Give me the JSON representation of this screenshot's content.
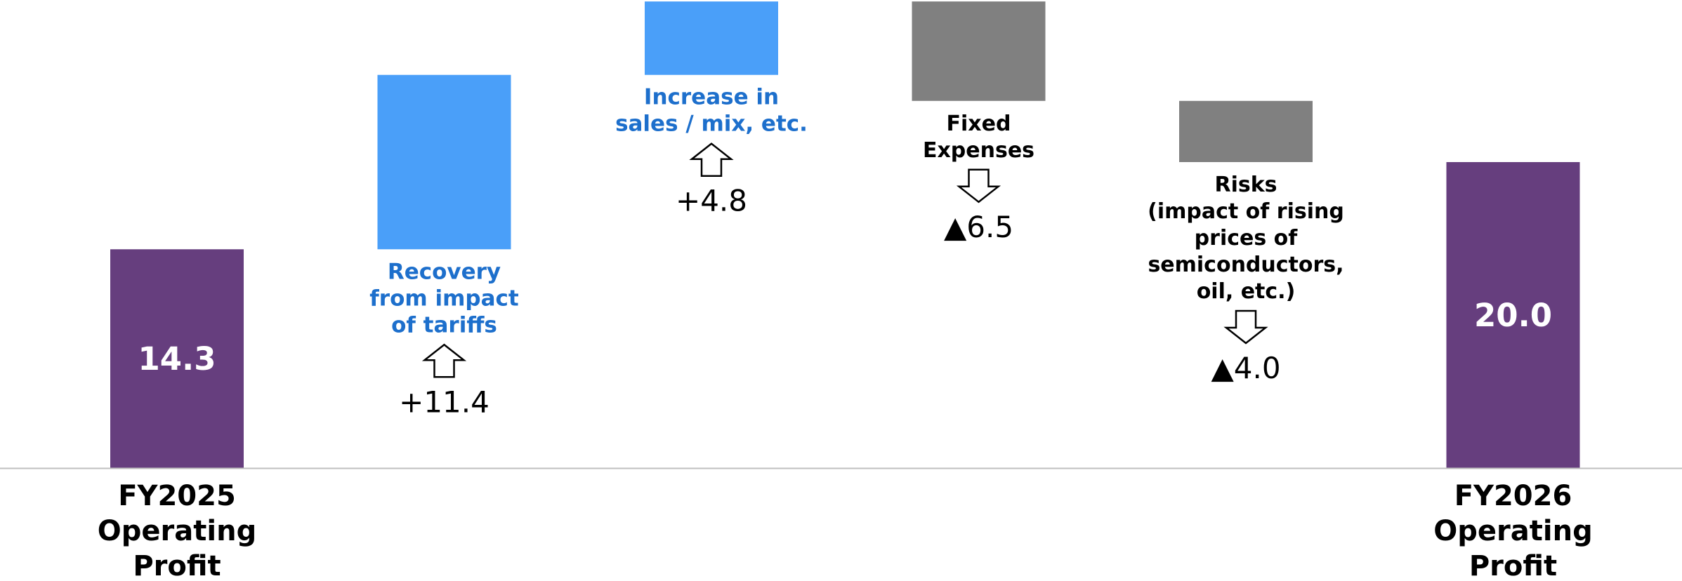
{
  "chart_data": {
    "type": "waterfall",
    "title": "",
    "xlabel": "",
    "ylabel": "",
    "ylim": [
      0,
      32.9
    ],
    "grid": false,
    "legend": "none",
    "colors": {
      "total": "#663e7e",
      "increase": "#4a9ff9",
      "decrease": "#808080",
      "increase_text": "#1d6fcc",
      "text": "#000000",
      "axis": "#bfbfbf"
    },
    "steps": [
      {
        "kind": "total",
        "label": [
          "FY2025",
          "Operating",
          "Profit"
        ],
        "value": 14.3,
        "value_label": "14.3"
      },
      {
        "kind": "increase",
        "label": [
          "Recovery",
          "from impact",
          "of tariffs"
        ],
        "value": 11.4,
        "delta_label": "+11.4"
      },
      {
        "kind": "increase",
        "label": [
          "Increase in",
          "sales / mix, etc."
        ],
        "value": 4.8,
        "delta_label": "+4.8"
      },
      {
        "kind": "decrease",
        "label": [
          "Fixed",
          "Expenses"
        ],
        "value": -6.5,
        "delta_label": "▲6.5"
      },
      {
        "kind": "decrease",
        "label": [
          "Risks",
          "(impact of rising",
          "prices of",
          "semiconductors,",
          "oil, etc.)"
        ],
        "value": -4.0,
        "delta_label": "▲4.0"
      },
      {
        "kind": "total",
        "label": [
          "FY2026",
          "Operating",
          "Profit"
        ],
        "value": 20.0,
        "value_label": "20.0"
      }
    ]
  }
}
